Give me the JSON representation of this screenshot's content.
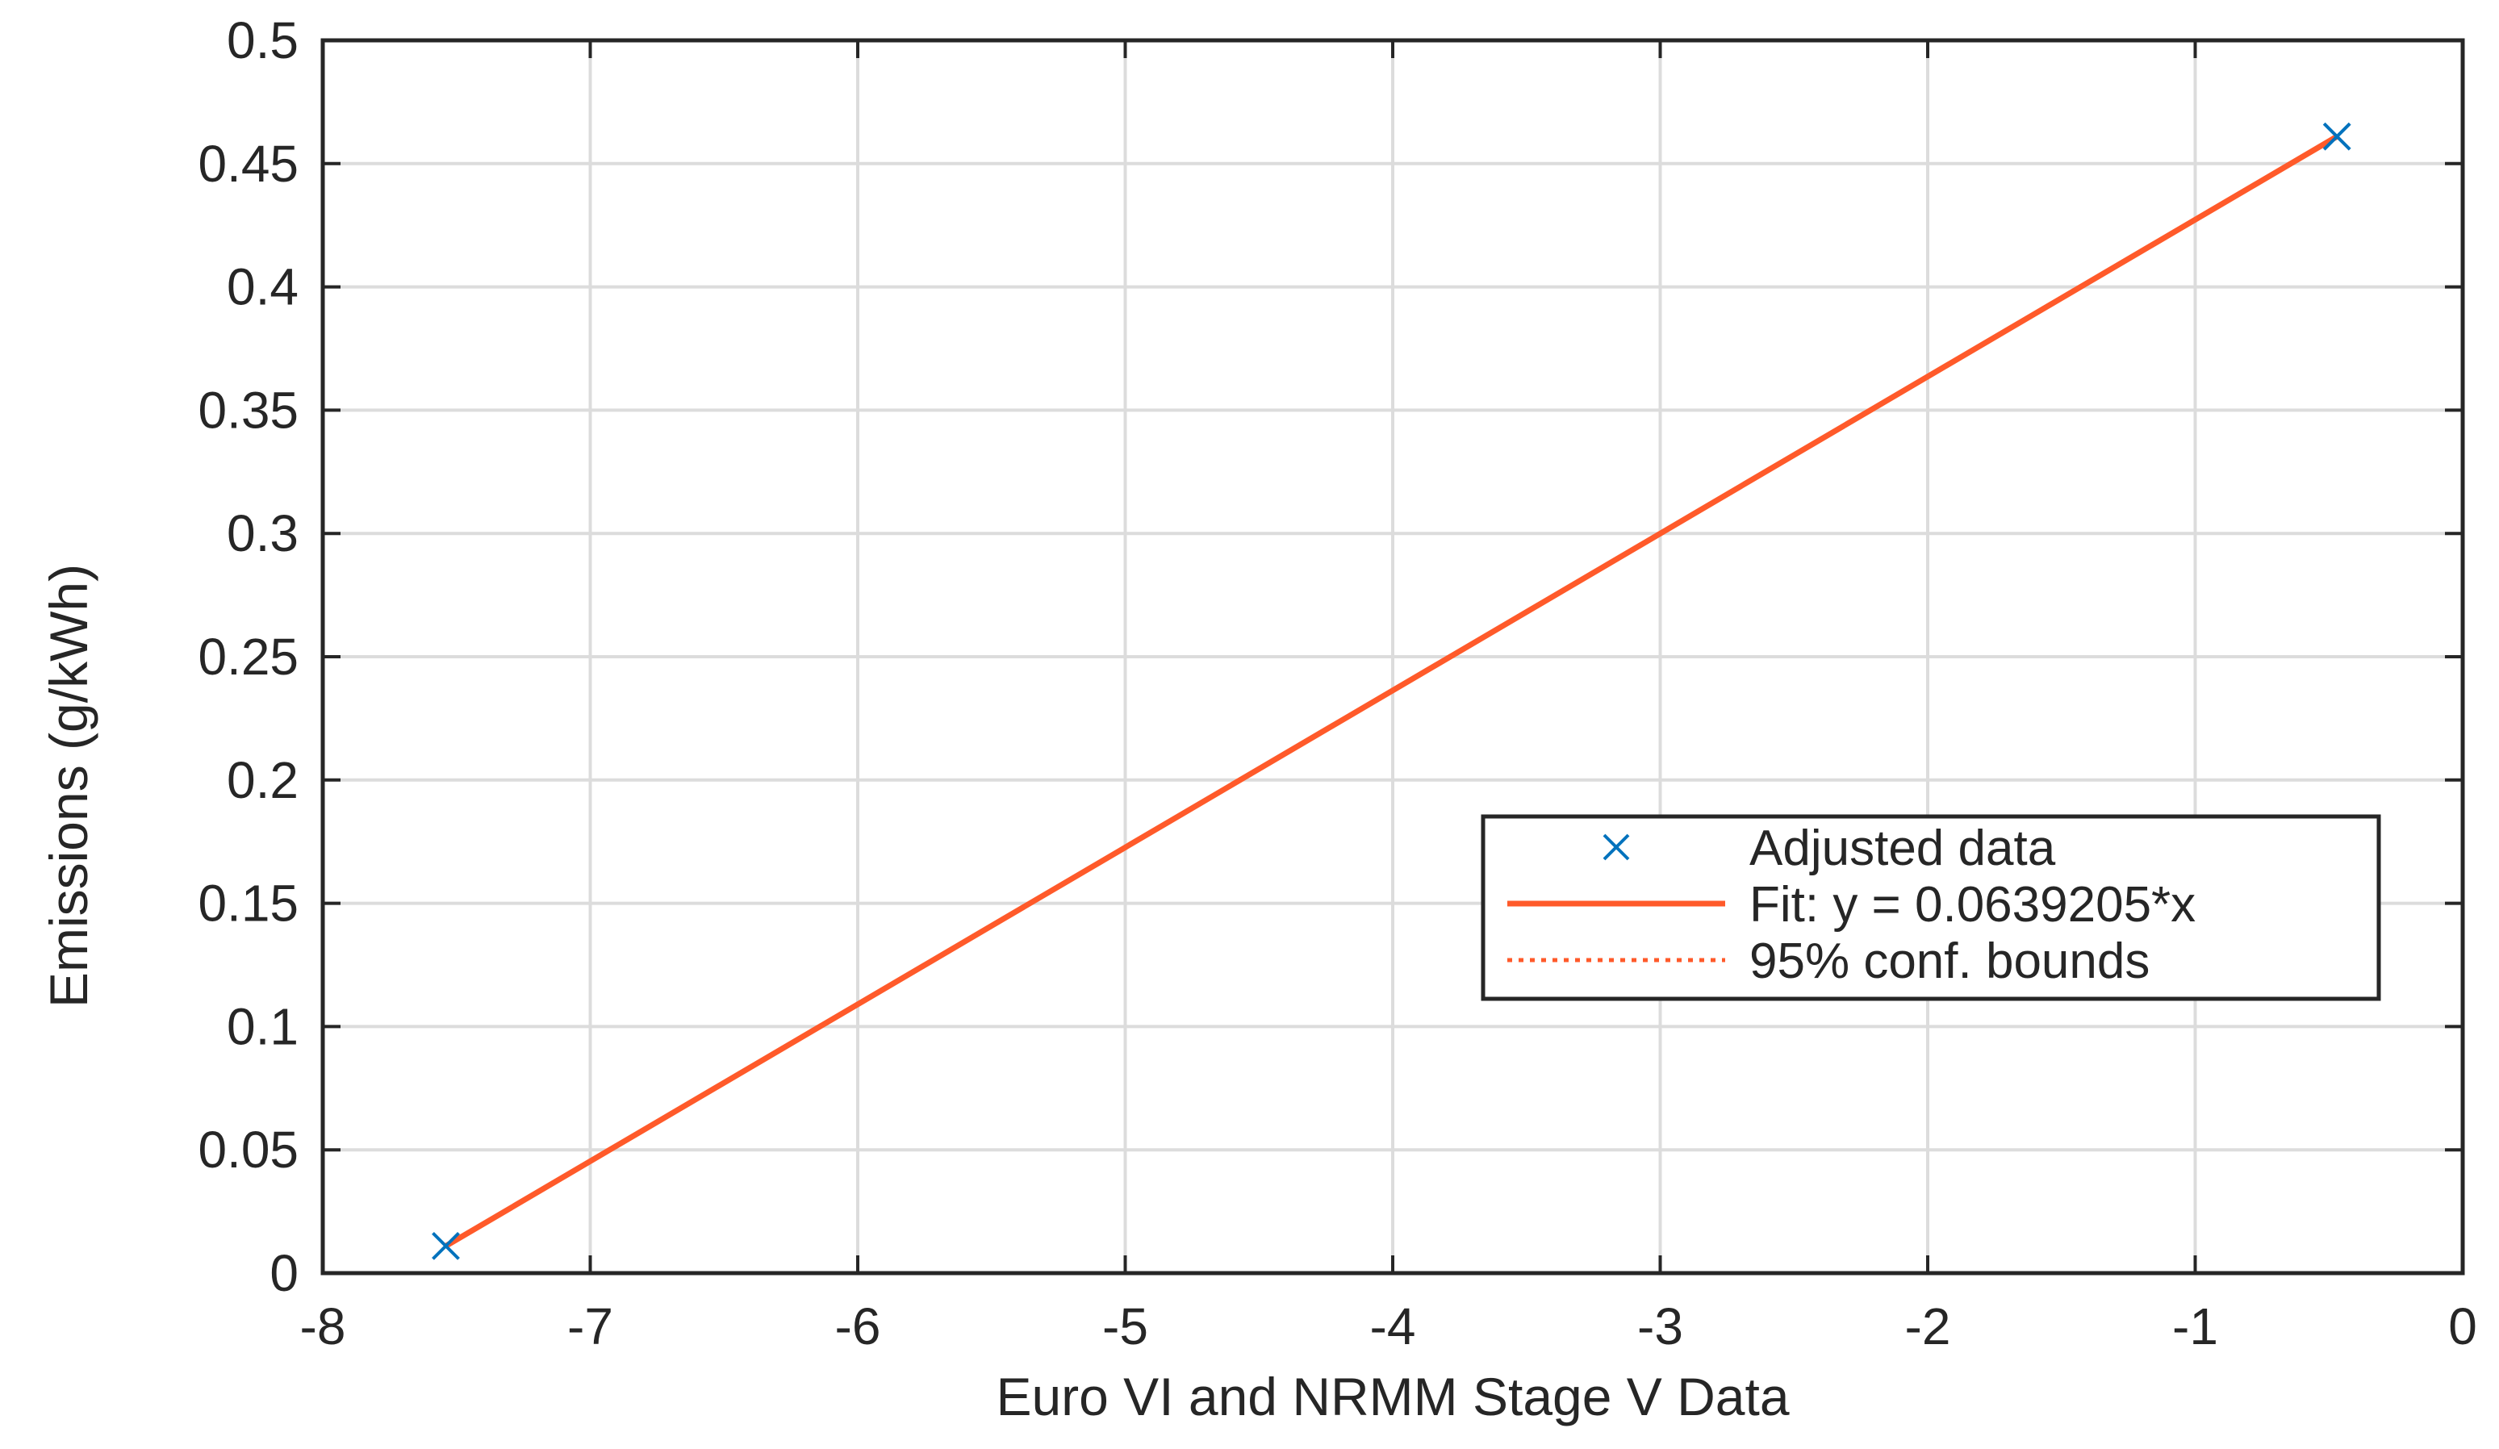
{
  "chart_data": {
    "type": "scatter",
    "title": "",
    "xlabel": "Euro VI and NRMM Stage V Data",
    "ylabel": "Emissions (g/kWh)",
    "xlim": [
      -8,
      0
    ],
    "ylim": [
      0,
      0.5
    ],
    "x_ticks": [
      -8,
      -7,
      -6,
      -5,
      -4,
      -3,
      -2,
      -1,
      0
    ],
    "x_tick_labels": [
      "-8",
      "-7",
      "-6",
      "-5",
      "-4",
      "-3",
      "-2",
      "-1",
      "0"
    ],
    "y_ticks": [
      0,
      0.05,
      0.1,
      0.15,
      0.2,
      0.25,
      0.3,
      0.35,
      0.4,
      0.45,
      0.5
    ],
    "y_tick_labels": [
      "0",
      "0.05",
      "0.1",
      "0.15",
      "0.2",
      "0.25",
      "0.3",
      "0.35",
      "0.4",
      "0.45",
      "0.5"
    ],
    "grid": true,
    "legend_position": "right",
    "series": [
      {
        "name": "Adjusted data",
        "kind": "scatter",
        "marker": "x",
        "color": "#0072BD",
        "points": [
          {
            "x": -7.54,
            "y": 0.011
          },
          {
            "x": -0.47,
            "y": 0.461
          }
        ]
      },
      {
        "name": "Fit: y = 0.0639205*x",
        "kind": "line",
        "color": "#FF5A2A",
        "points": [
          {
            "x": -7.54,
            "y": 0.011
          },
          {
            "x": -0.47,
            "y": 0.461
          }
        ]
      },
      {
        "name": "95% conf. bounds",
        "kind": "line",
        "style": "dotted",
        "color": "#FF5A2A",
        "points": []
      }
    ]
  }
}
